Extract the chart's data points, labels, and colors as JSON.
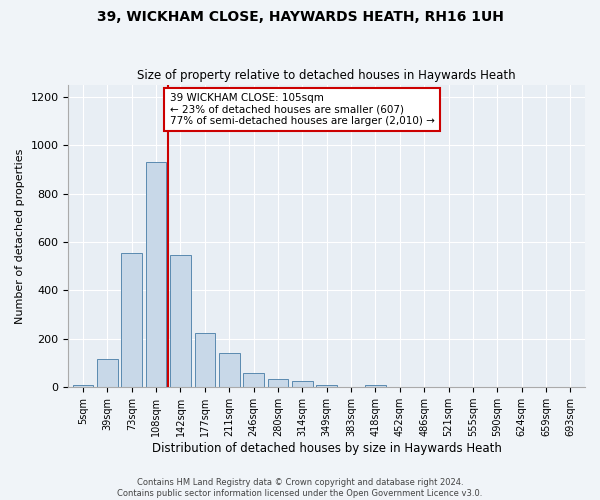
{
  "title": "39, WICKHAM CLOSE, HAYWARDS HEATH, RH16 1UH",
  "subtitle": "Size of property relative to detached houses in Haywards Heath",
  "xlabel": "Distribution of detached houses by size in Haywards Heath",
  "ylabel": "Number of detached properties",
  "categories": [
    "5sqm",
    "39sqm",
    "73sqm",
    "108sqm",
    "142sqm",
    "177sqm",
    "211sqm",
    "246sqm",
    "280sqm",
    "314sqm",
    "349sqm",
    "383sqm",
    "418sqm",
    "452sqm",
    "486sqm",
    "521sqm",
    "555sqm",
    "590sqm",
    "624sqm",
    "659sqm",
    "693sqm"
  ],
  "values": [
    8,
    115,
    555,
    930,
    545,
    225,
    140,
    58,
    33,
    25,
    10,
    0,
    8,
    0,
    0,
    0,
    0,
    0,
    0,
    0,
    0
  ],
  "bar_color": "#c8d8e8",
  "bar_edge_color": "#5a8ab0",
  "vline_x": 3.5,
  "vline_color": "#cc0000",
  "annotation_title": "39 WICKHAM CLOSE: 105sqm",
  "annotation_line1": "← 23% of detached houses are smaller (607)",
  "annotation_line2": "77% of semi-detached houses are larger (2,010) →",
  "annotation_box_color": "#cc0000",
  "ylim": [
    0,
    1250
  ],
  "yticks": [
    0,
    200,
    400,
    600,
    800,
    1000,
    1200
  ],
  "bg_color": "#e8eef4",
  "grid_color": "#ffffff",
  "footer": "Contains HM Land Registry data © Crown copyright and database right 2024.\nContains public sector information licensed under the Open Government Licence v3.0."
}
